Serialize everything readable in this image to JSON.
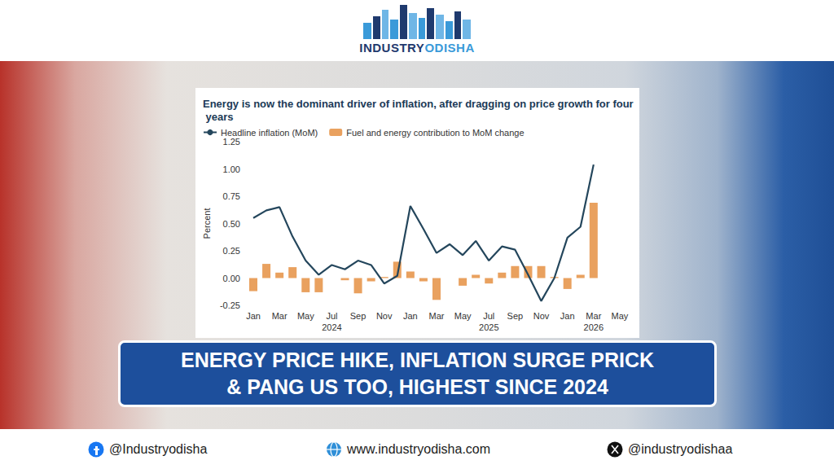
{
  "page": {
    "logo": [
      "INDUSTRY",
      "ODISHA"
    ],
    "headline": [
      "ENERGY PRICE HIKE, INFLATION SURGE PRICK",
      "& PANG US TOO, HIGHEST SINCE 2024"
    ],
    "footer": [
      "@Industryodisha",
      "www.industryodisha.com",
      "@industryodishaa"
    ]
  },
  "chart_data": {
    "type": "bar",
    "title": "Energy is now the dominant driver of inflation, after dragging on price growth for four years",
    "y_label": "Percent",
    "categories": [
      "Jan",
      null,
      "Mar",
      null,
      "May",
      null,
      "Jul\n2024",
      null,
      "Sep",
      null,
      "Nov",
      null,
      "Jan",
      null,
      "Mar",
      null,
      "May",
      null,
      "Jul\n2025",
      null,
      "Sep",
      null,
      "Nov",
      null,
      "Jan",
      null,
      "Mar\n2026",
      null,
      "May"
    ],
    "series": [
      {
        "name": "Headline inflation (MoM)",
        "type": "line",
        "color": "#24465c",
        "line_style": "solid",
        "values": [
          0.55,
          0.62,
          0.65,
          0.38,
          0.16,
          0.03,
          0.12,
          0.08,
          0.16,
          0.12,
          -0.05,
          0.02,
          0.66,
          0.45,
          0.23,
          0.31,
          0.21,
          0.34,
          0.16,
          0.29,
          0.26,
          0.03,
          -0.21,
          0.0,
          0.37,
          0.47,
          1.04,
          null,
          null
        ]
      },
      {
        "name": "Fuel and energy contribution to MoM change",
        "type": "bar",
        "color": "#e9a15f",
        "values": [
          -0.12,
          0.13,
          0.05,
          0.1,
          -0.13,
          -0.13,
          0.0,
          -0.02,
          -0.14,
          -0.03,
          0.01,
          0.15,
          0.06,
          -0.03,
          -0.2,
          0.0,
          -0.07,
          0.03,
          -0.05,
          0.05,
          0.11,
          0.11,
          0.11,
          0.01,
          -0.1,
          0.03,
          0.69,
          null,
          null
        ]
      }
    ],
    "ylim": [
      -0.25,
      1.25
    ],
    "yticks": [
      -0.25,
      {
        "value": 0,
        "label": "0.00"
      },
      0.25,
      {
        "value": 0.5,
        "label": "0.50"
      },
      0.75,
      {
        "value": 1,
        "label": "1.00"
      },
      1.25
    ],
    "grid": false,
    "legend": "top-left"
  }
}
